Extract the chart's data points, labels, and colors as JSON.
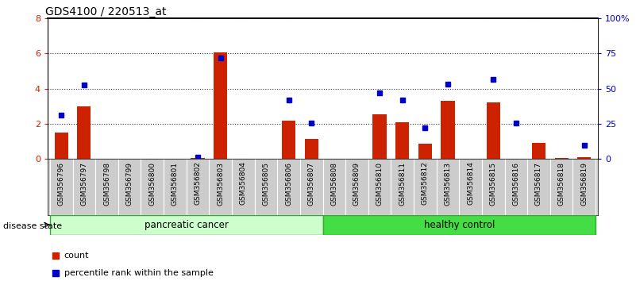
{
  "title": "GDS4100 / 220513_at",
  "samples": [
    "GSM356796",
    "GSM356797",
    "GSM356798",
    "GSM356799",
    "GSM356800",
    "GSM356801",
    "GSM356802",
    "GSM356803",
    "GSM356804",
    "GSM356805",
    "GSM356806",
    "GSM356807",
    "GSM356808",
    "GSM356809",
    "GSM356810",
    "GSM356811",
    "GSM356812",
    "GSM356813",
    "GSM356814",
    "GSM356815",
    "GSM356816",
    "GSM356817",
    "GSM356818",
    "GSM356819"
  ],
  "counts": [
    1.5,
    3.0,
    0.0,
    0.0,
    0.0,
    0.0,
    0.05,
    6.05,
    0.0,
    0.0,
    2.15,
    1.15,
    0.0,
    0.0,
    2.55,
    2.1,
    0.85,
    3.3,
    0.0,
    3.2,
    0.0,
    0.9,
    0.05,
    0.1
  ],
  "percentiles": [
    2.5,
    4.2,
    null,
    null,
    null,
    null,
    0.08,
    5.75,
    null,
    null,
    3.35,
    2.05,
    null,
    null,
    3.75,
    3.35,
    1.75,
    4.25,
    null,
    4.5,
    2.05,
    null,
    null,
    0.75
  ],
  "ylim_left": [
    0,
    8
  ],
  "ylim_right": [
    0,
    100
  ],
  "yticks_left": [
    0,
    2,
    4,
    6,
    8
  ],
  "yticks_right": [
    0,
    25,
    50,
    75,
    100
  ],
  "ytick_labels_right": [
    "0",
    "25",
    "50",
    "75",
    "100%"
  ],
  "bar_color": "#cc2200",
  "marker_color": "#0000cc",
  "pancreatic_label": "pancreatic cancer",
  "healthy_label": "healthy control",
  "pancreatic_color": "#ccffcc",
  "healthy_color": "#44dd44",
  "disease_state_label": "disease state",
  "legend_count_label": "count",
  "legend_percentile_label": "percentile rank within the sample",
  "bg_color": "#cccccc",
  "title_fontsize": 10
}
